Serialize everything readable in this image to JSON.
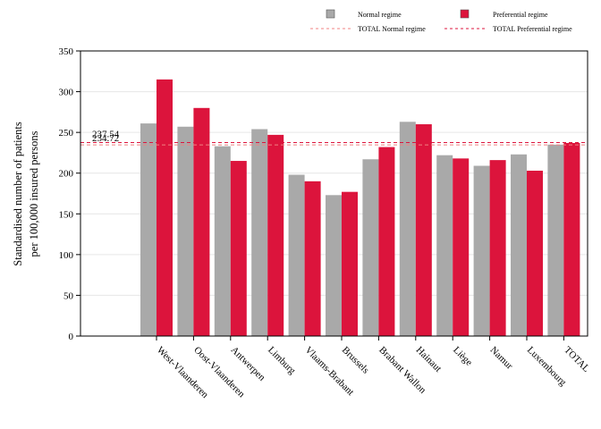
{
  "chart_data": {
    "type": "bar",
    "title": "",
    "xlabel": "",
    "ylabel_lines": [
      "Standardised number of patients",
      "per 100,000 insured persons"
    ],
    "ylim": [
      0,
      350
    ],
    "yticks": [
      0,
      50,
      100,
      150,
      200,
      250,
      300,
      350
    ],
    "grid": "horizontal",
    "legend_position": "top",
    "categories": [
      "West-Vlaanderen",
      "Oost-Vlaanderen",
      "Antwerpen",
      "Limburg",
      "Vlaams-Brabant",
      "Brussels",
      "Brabant Wallon",
      "Hainaut",
      "Liège",
      "Namur",
      "Luxembourg",
      "TOTAL"
    ],
    "series": [
      {
        "name": "Normal regime",
        "color": "#a9a9a9",
        "values": [
          261,
          257,
          233,
          254,
          198,
          173,
          217,
          263,
          222,
          209,
          223,
          235
        ]
      },
      {
        "name": "Preferential regime",
        "color": "#dc143c",
        "values": [
          315,
          280,
          215,
          247,
          190,
          177,
          232,
          260,
          218,
          216,
          203,
          237
        ]
      }
    ],
    "reference_lines": [
      {
        "name": "TOTAL Normal regime",
        "value": 234.72,
        "label": "234.72",
        "color": "#f08080"
      },
      {
        "name": "TOTAL Preferential regime",
        "value": 237.54,
        "label": "237.54",
        "color": "#dc143c"
      }
    ]
  }
}
